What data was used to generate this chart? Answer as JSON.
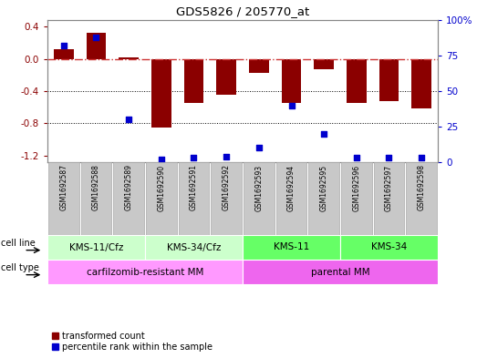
{
  "title": "GDS5826 / 205770_at",
  "samples": [
    "GSM1692587",
    "GSM1692588",
    "GSM1692589",
    "GSM1692590",
    "GSM1692591",
    "GSM1692592",
    "GSM1692593",
    "GSM1692594",
    "GSM1692595",
    "GSM1692596",
    "GSM1692597",
    "GSM1692598"
  ],
  "transformed_count": [
    0.12,
    0.32,
    0.02,
    -0.85,
    -0.55,
    -0.45,
    -0.18,
    -0.55,
    -0.13,
    -0.55,
    -0.52,
    -0.62
  ],
  "percentile_rank": [
    82,
    88,
    30,
    2,
    3,
    4,
    10,
    40,
    20,
    3,
    3,
    3
  ],
  "ylim_left": [
    -1.28,
    0.48
  ],
  "ylim_right": [
    0,
    100
  ],
  "yticks_left": [
    -1.2,
    -0.8,
    -0.4,
    0.0,
    0.4
  ],
  "yticks_right": [
    0,
    25,
    50,
    75,
    100
  ],
  "ytick_labels_right": [
    "0",
    "25",
    "50",
    "75",
    "100%"
  ],
  "bar_color": "#8B0000",
  "scatter_color": "#0000CD",
  "hline_color": "#CC3333",
  "dotted_line_color": "#000000",
  "cell_line_groups": [
    {
      "label": "KMS-11/Cfz",
      "start": 0,
      "end": 3,
      "color": "#CCFFCC"
    },
    {
      "label": "KMS-34/Cfz",
      "start": 3,
      "end": 6,
      "color": "#CCFFCC"
    },
    {
      "label": "KMS-11",
      "start": 6,
      "end": 9,
      "color": "#66FF66"
    },
    {
      "label": "KMS-34",
      "start": 9,
      "end": 12,
      "color": "#66FF66"
    }
  ],
  "cell_type_groups": [
    {
      "label": "carfilzomib-resistant MM",
      "start": 0,
      "end": 6,
      "color": "#FF99FF"
    },
    {
      "label": "parental MM",
      "start": 6,
      "end": 12,
      "color": "#EE66EE"
    }
  ],
  "cell_line_label": "cell line",
  "cell_type_label": "cell type",
  "legend_items": [
    {
      "label": "transformed count",
      "color": "#8B0000"
    },
    {
      "label": "percentile rank within the sample",
      "color": "#0000CD"
    }
  ],
  "bar_width": 0.6,
  "scatter_size": 18,
  "gray_box_color": "#C8C8C8",
  "gray_box_edge": "#AAAAAA"
}
